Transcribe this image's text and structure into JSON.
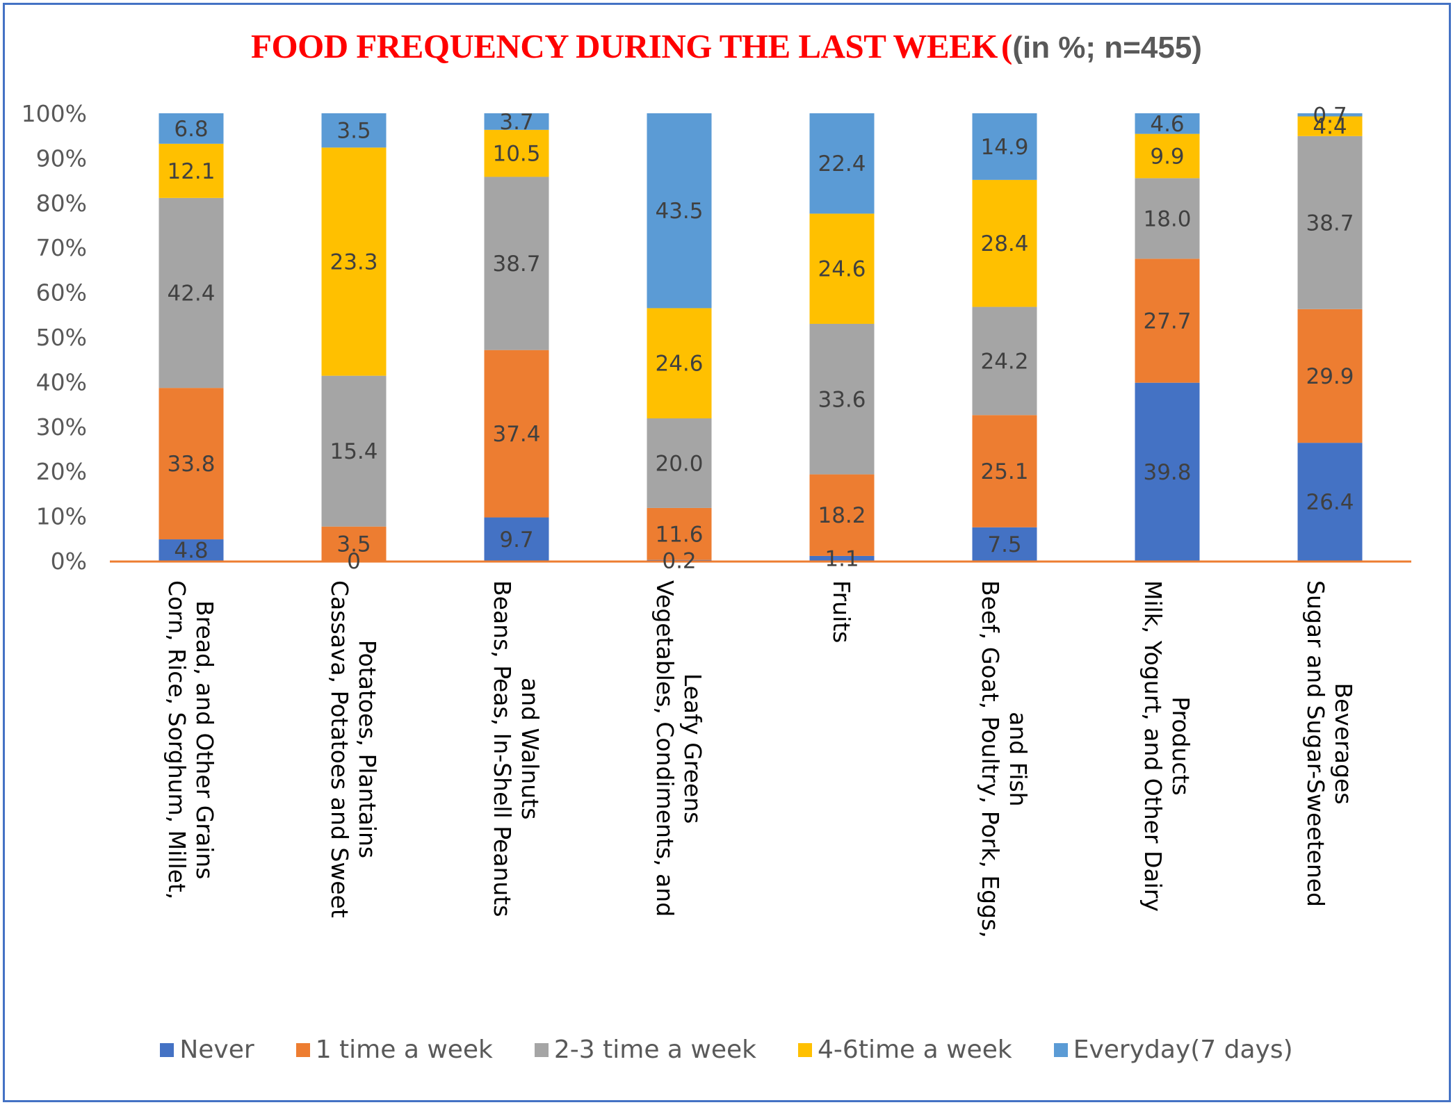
{
  "chart_data": {
    "type": "bar",
    "stacked": true,
    "title": "FOOD FREQUENCY DURING THE LAST WEEK",
    "title_paren": "(",
    "subtitle": "(in %; n=455)",
    "xlabel": "",
    "ylabel": "",
    "ylim": [
      0,
      100
    ],
    "yticks": [
      "0%",
      "10%",
      "20%",
      "30%",
      "40%",
      "50%",
      "60%",
      "70%",
      "80%",
      "90%",
      "100%"
    ],
    "grid": false,
    "legend_position": "bottom",
    "categories": [
      [
        "Corn, Rice, Sorghum, Millet,",
        "Bread, and Other Grains"
      ],
      [
        "Cassava, Potatoes and Sweet",
        "Potatoes, Plantains"
      ],
      [
        "Beans, Peas, In-Shell Peanuts",
        "and Walnuts"
      ],
      [
        "Vegetables, Condiments, and",
        "Leafy Greens"
      ],
      [
        "Fruits"
      ],
      [
        "Beef, Goat, Poultry, Pork, Eggs,",
        "and Fish"
      ],
      [
        "Milk, Yogurt, and Other Dairy",
        "Products"
      ],
      [
        "Sugar and Sugar-Sweetened",
        "Beverages"
      ]
    ],
    "series": [
      {
        "name": "Never",
        "color": "#4472c4",
        "values": [
          4.8,
          0,
          9.7,
          0.2,
          1.1,
          7.5,
          39.8,
          26.4
        ],
        "labels": [
          "4.8",
          "0",
          "9.7",
          "0.2",
          "1.1",
          "7.5",
          "39.8",
          "26.4"
        ]
      },
      {
        "name": "1 time a week",
        "color": "#ed7d31",
        "values": [
          33.8,
          3.5,
          37.4,
          11.6,
          18.2,
          25.1,
          27.7,
          29.9
        ],
        "labels": [
          "33.8",
          "3.5",
          "37.4",
          "11.6",
          "18.2",
          "25.1",
          "27.7",
          "29.9"
        ]
      },
      {
        "name": "2-3 time a week",
        "color": "#a5a5a5",
        "values": [
          42.4,
          15.4,
          38.7,
          20.0,
          33.6,
          24.2,
          18.0,
          38.7
        ],
        "labels": [
          "42.4",
          "15.4",
          "38.7",
          "20.0",
          "33.6",
          "24.2",
          "18.0",
          "38.7"
        ]
      },
      {
        "name": "4-6time a week",
        "color": "#ffc000",
        "values": [
          12.1,
          23.3,
          10.5,
          24.6,
          24.6,
          28.4,
          9.9,
          4.4
        ],
        "labels": [
          "12.1",
          "23.3",
          "10.5",
          "24.6",
          "24.6",
          "28.4",
          "9.9",
          "4.4"
        ]
      },
      {
        "name": "Everyday(7 days)",
        "color": "#5b9bd5",
        "values": [
          6.8,
          3.5,
          3.7,
          43.5,
          22.4,
          14.9,
          4.6,
          0.7
        ],
        "labels": [
          "6.8",
          "3.5",
          "3.7",
          "43.5",
          "22.4",
          "14.9",
          "4.6",
          "0.7"
        ]
      }
    ],
    "note": "Each bar is rendered as 100% stacked (percent of column total)."
  },
  "colors": {
    "title": "#ff0000",
    "subtitle": "#595959",
    "axis_line": "#ed7d31",
    "frame": "#4472c4"
  }
}
